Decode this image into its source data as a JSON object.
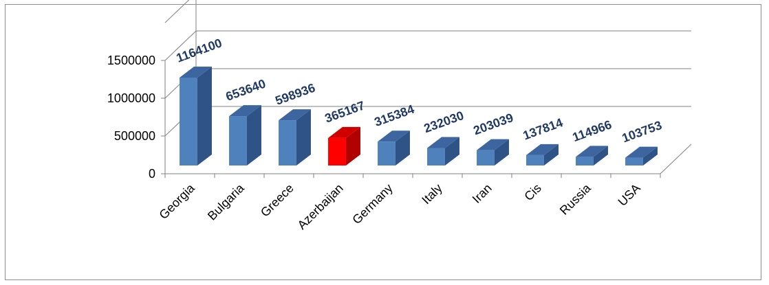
{
  "chart_data": {
    "type": "bar",
    "style": "3d-column",
    "categories": [
      "Georgia",
      "Bulgaria",
      "Greece",
      "Azerbaijan",
      "Germany",
      "Italy",
      "Iran",
      "Cis",
      "Russia",
      "USA"
    ],
    "values": [
      1164100,
      653640,
      598936,
      365167,
      315384,
      232030,
      203039,
      137814,
      114966,
      103753
    ],
    "data_labels": [
      "1164100",
      "653640",
      "598936",
      "365167",
      "315384",
      "232030",
      "203039",
      "137814",
      "114966",
      "103753"
    ],
    "highlight_category": "Azerbaijan",
    "title": "",
    "xlabel": "",
    "ylabel": "",
    "ylim": [
      0,
      1500000
    ],
    "yticks": [
      "0",
      "500000",
      "1000000",
      "1500000"
    ],
    "grid": true,
    "legend": "none",
    "colors": {
      "bar_front": "#4f81bd",
      "bar_side": "#2f5287",
      "bar_top": "#3d66a0",
      "highlight_front": "#ff0000",
      "highlight_side": "#b00000",
      "highlight_top": "#d00000",
      "label": "#1f3864",
      "grid": "#808080"
    }
  }
}
